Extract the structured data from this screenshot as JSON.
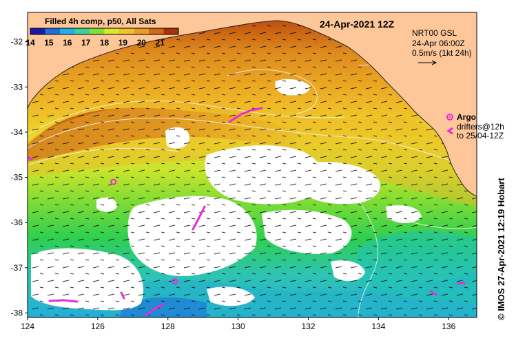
{
  "map": {
    "date_title": "24-Apr-2021 12Z",
    "colorbar": {
      "title": "Filled 4h comp, p50, All Sats",
      "tick_labels": [
        "14",
        "15",
        "16",
        "17",
        "18",
        "19",
        "20",
        "21"
      ],
      "range": [
        14,
        22
      ],
      "colors": [
        "#1a1aa6",
        "#1f6fd6",
        "#22b0e6",
        "#3cd0a0",
        "#7fe03a",
        "#d8e82a",
        "#f0c22a",
        "#eb9a22",
        "#cf6a16",
        "#a8300c"
      ]
    },
    "legend": {
      "current_source": "NRT00 GSL",
      "current_time": "24-Apr 06:00Z",
      "scale_label": "0.5m/s (1kt 24h)",
      "argo_label": "Argo",
      "drifters_label": "drifters@12h",
      "drifters_range": "to 25/04-12Z"
    },
    "credit": "© IMOS 27-Apr-2021 12:19 Hobart",
    "x_axis": {
      "ticks": [
        124,
        126,
        128,
        130,
        132,
        134,
        136
      ],
      "range": [
        124,
        136.8
      ]
    },
    "y_axis": {
      "ticks": [
        -32,
        -33,
        -34,
        -35,
        -36,
        -37,
        -38
      ],
      "range": [
        -38.1,
        -31.35
      ]
    },
    "land_color": "#fdc79a",
    "argo_floats": [
      {
        "lon": 126.45,
        "lat": -35.1
      },
      {
        "lon": 128.2,
        "lat": -37.3
      }
    ]
  }
}
